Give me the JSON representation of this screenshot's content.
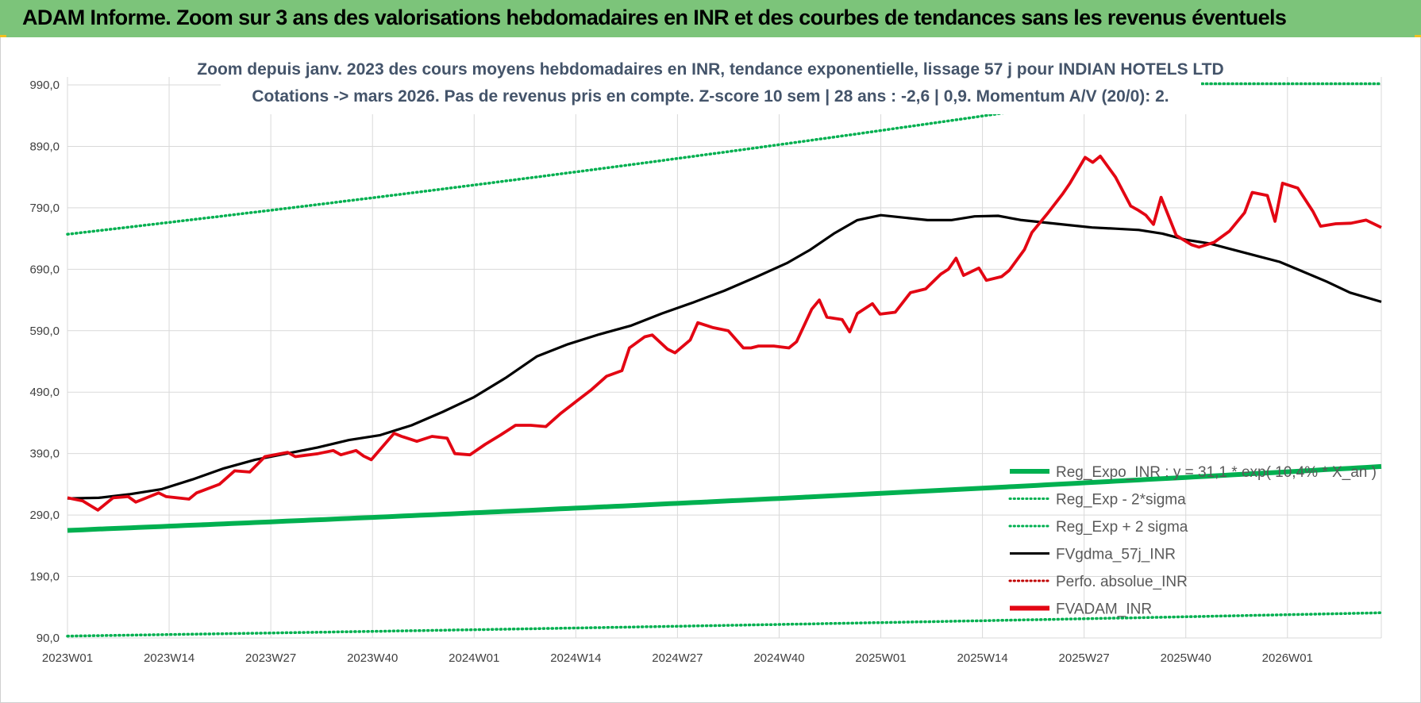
{
  "banner": {
    "title": "ADAM Informe. Zoom sur 3 ans des valorisations hebdomadaires en INR et des courbes de tendances sans les revenus éventuels"
  },
  "colors": {
    "banner_bg": "#7cc47a",
    "red_series": "#e30613",
    "black_series": "#000000",
    "green_series": "#00b050",
    "perfo_series": "#c00000",
    "grid": "#d9d9d9",
    "subtitle": "#44546a"
  },
  "chart_data": {
    "type": "line",
    "title": [
      "Zoom depuis janv. 2023 des cours moyens hebdomadaires en INR, tendance exponentielle, lissage 57 j pour INDIAN HOTELS LTD",
      "Cotations -> mars 2026. Pas de revenus pris en compte. Z-score 10 sem | 28 ans : -2,6 | 0,9. Momentum A/V (20/0): 2."
    ],
    "xlabel": "",
    "ylabel": "",
    "ylim": [
      90,
      990
    ],
    "yticks": [
      "990,0",
      "890,0",
      "790,0",
      "690,0",
      "590,0",
      "490,0",
      "390,0",
      "290,0",
      "190,0",
      "90,0"
    ],
    "yticks_values": [
      990,
      890,
      790,
      690,
      590,
      490,
      390,
      290,
      190,
      90
    ],
    "x_tick_labels": [
      "2023W01",
      "2023W14",
      "2023W27",
      "2023W40",
      "2024W01",
      "2024W14",
      "2024W27",
      "2024W40",
      "2025W01",
      "2025W14",
      "2025W27",
      "2025W40",
      "2026W01"
    ],
    "x_tick_index": [
      0,
      13,
      26,
      39,
      52,
      65,
      78,
      91,
      104,
      117,
      130,
      143,
      156
    ],
    "x_count": 169,
    "grid": true,
    "legend_position": "bottom-right",
    "series": [
      {
        "name": "Reg_Expo_INR : y = 31,1 * exp( 10,4% * X_an )",
        "style": "solid-thick",
        "color": "#00b050",
        "values": "exp",
        "start": 265,
        "end": 369
      },
      {
        "name": "Reg_Exp - 2*sigma",
        "style": "dotted",
        "color": "#00b050",
        "start": 93,
        "end": 131
      },
      {
        "name": "Reg_Exp + 2 sigma",
        "style": "dotted",
        "color": "#00b050",
        "start": 747,
        "end": 1038,
        "cap": 992
      },
      {
        "name": "FVgdma_57j_INR",
        "style": "solid",
        "color": "#000000",
        "points": [
          [
            0,
            317
          ],
          [
            4,
            318
          ],
          [
            8,
            324
          ],
          [
            12,
            332
          ],
          [
            16,
            348
          ],
          [
            20,
            366
          ],
          [
            24,
            380
          ],
          [
            28,
            390
          ],
          [
            32,
            400
          ],
          [
            36,
            412
          ],
          [
            40,
            420
          ],
          [
            44,
            436
          ],
          [
            48,
            458
          ],
          [
            52,
            482
          ],
          [
            56,
            513
          ],
          [
            60,
            548
          ],
          [
            64,
            568
          ],
          [
            68,
            584
          ],
          [
            72,
            598
          ],
          [
            76,
            618
          ],
          [
            80,
            636
          ],
          [
            84,
            655
          ],
          [
            88,
            677
          ],
          [
            92,
            700
          ],
          [
            95,
            722
          ],
          [
            98,
            748
          ],
          [
            101,
            770
          ],
          [
            104,
            778
          ],
          [
            107,
            774
          ],
          [
            110,
            770
          ],
          [
            113,
            770
          ],
          [
            116,
            776
          ],
          [
            119,
            777
          ],
          [
            122,
            770
          ],
          [
            125,
            766
          ],
          [
            128,
            762
          ],
          [
            131,
            758
          ],
          [
            134,
            756
          ],
          [
            137,
            754
          ],
          [
            140,
            748
          ],
          [
            143,
            738
          ],
          [
            146,
            732
          ],
          [
            149,
            722
          ],
          [
            152,
            712
          ],
          [
            155,
            702
          ],
          [
            158,
            686
          ],
          [
            161,
            670
          ],
          [
            164,
            652
          ],
          [
            168,
            637
          ]
        ]
      },
      {
        "name": "Perfo. absolue_INR",
        "style": "dotted",
        "color": "#c00000",
        "values": []
      },
      {
        "name": "FVADAM_INR",
        "style": "solid-thick",
        "color": "#e30613",
        "points": [
          [
            0,
            318
          ],
          [
            2,
            313
          ],
          [
            4,
            298
          ],
          [
            6,
            318
          ],
          [
            8,
            320
          ],
          [
            9,
            311
          ],
          [
            12,
            326
          ],
          [
            13,
            320
          ],
          [
            16,
            316
          ],
          [
            17,
            326
          ],
          [
            20,
            340
          ],
          [
            22,
            362
          ],
          [
            24,
            360
          ],
          [
            26,
            385
          ],
          [
            29,
            392
          ],
          [
            30,
            385
          ],
          [
            33,
            390
          ],
          [
            35,
            395
          ],
          [
            36,
            388
          ],
          [
            38,
            395
          ],
          [
            39,
            386
          ],
          [
            40,
            380
          ],
          [
            43,
            423
          ],
          [
            44,
            418
          ],
          [
            46,
            410
          ],
          [
            48,
            418
          ],
          [
            50,
            415
          ],
          [
            51,
            390
          ],
          [
            53,
            388
          ],
          [
            55,
            405
          ],
          [
            57,
            420
          ],
          [
            59,
            436
          ],
          [
            61,
            436
          ],
          [
            63,
            434
          ],
          [
            65,
            456
          ],
          [
            67,
            475
          ],
          [
            69,
            494
          ],
          [
            71,
            516
          ],
          [
            73,
            525
          ],
          [
            74,
            562
          ],
          [
            76,
            580
          ],
          [
            77,
            583
          ],
          [
            79,
            560
          ],
          [
            80,
            554
          ],
          [
            82,
            575
          ],
          [
            83,
            603
          ],
          [
            85,
            595
          ],
          [
            87,
            590
          ],
          [
            89,
            562
          ],
          [
            90,
            562
          ],
          [
            91,
            565
          ],
          [
            93,
            565
          ],
          [
            95,
            562
          ],
          [
            96,
            572
          ],
          [
            98,
            625
          ],
          [
            99,
            640
          ],
          [
            100,
            612
          ],
          [
            102,
            608
          ],
          [
            103,
            588
          ],
          [
            104,
            618
          ],
          [
            106,
            634
          ],
          [
            107,
            617
          ],
          [
            109,
            620
          ],
          [
            111,
            652
          ],
          [
            113,
            658
          ],
          [
            115,
            682
          ],
          [
            116,
            690
          ],
          [
            117,
            708
          ],
          [
            118,
            680
          ],
          [
            120,
            692
          ],
          [
            121,
            672
          ],
          [
            123,
            678
          ],
          [
            124,
            688
          ],
          [
            126,
            722
          ],
          [
            127,
            750
          ],
          [
            129,
            780
          ],
          [
            131,
            812
          ],
          [
            132,
            830
          ],
          [
            134,
            872
          ],
          [
            135,
            864
          ],
          [
            136,
            874
          ],
          [
            138,
            840
          ],
          [
            140,
            793
          ],
          [
            141,
            786
          ],
          [
            142,
            778
          ],
          [
            143,
            763
          ],
          [
            144,
            807
          ],
          [
            146,
            745
          ],
          [
            148,
            730
          ],
          [
            149,
            726
          ],
          [
            151,
            734
          ],
          [
            153,
            752
          ],
          [
            155,
            782
          ],
          [
            156,
            815
          ],
          [
            158,
            810
          ],
          [
            159,
            768
          ],
          [
            160,
            830
          ],
          [
            162,
            822
          ],
          [
            164,
            784
          ],
          [
            165,
            760
          ],
          [
            167,
            764
          ],
          [
            169,
            765
          ],
          [
            171,
            770
          ],
          [
            173,
            758
          ]
        ]
      }
    ]
  },
  "legend": {
    "items": [
      {
        "label": "Reg_Expo_INR : y = 31,1 * exp( 10,4% * X_an )",
        "style": "thick",
        "color": "#00b050"
      },
      {
        "label": "Reg_Exp - 2*sigma",
        "style": "dotted",
        "color": "#00b050"
      },
      {
        "label": "Reg_Exp + 2 sigma",
        "style": "dotted",
        "color": "#00b050"
      },
      {
        "label": "FVgdma_57j_INR",
        "style": "solid",
        "color": "#000000"
      },
      {
        "label": "Perfo. absolue_INR",
        "style": "dotted",
        "color": "#c00000"
      },
      {
        "label": "FVADAM_INR",
        "style": "thick",
        "color": "#e30613"
      }
    ]
  }
}
